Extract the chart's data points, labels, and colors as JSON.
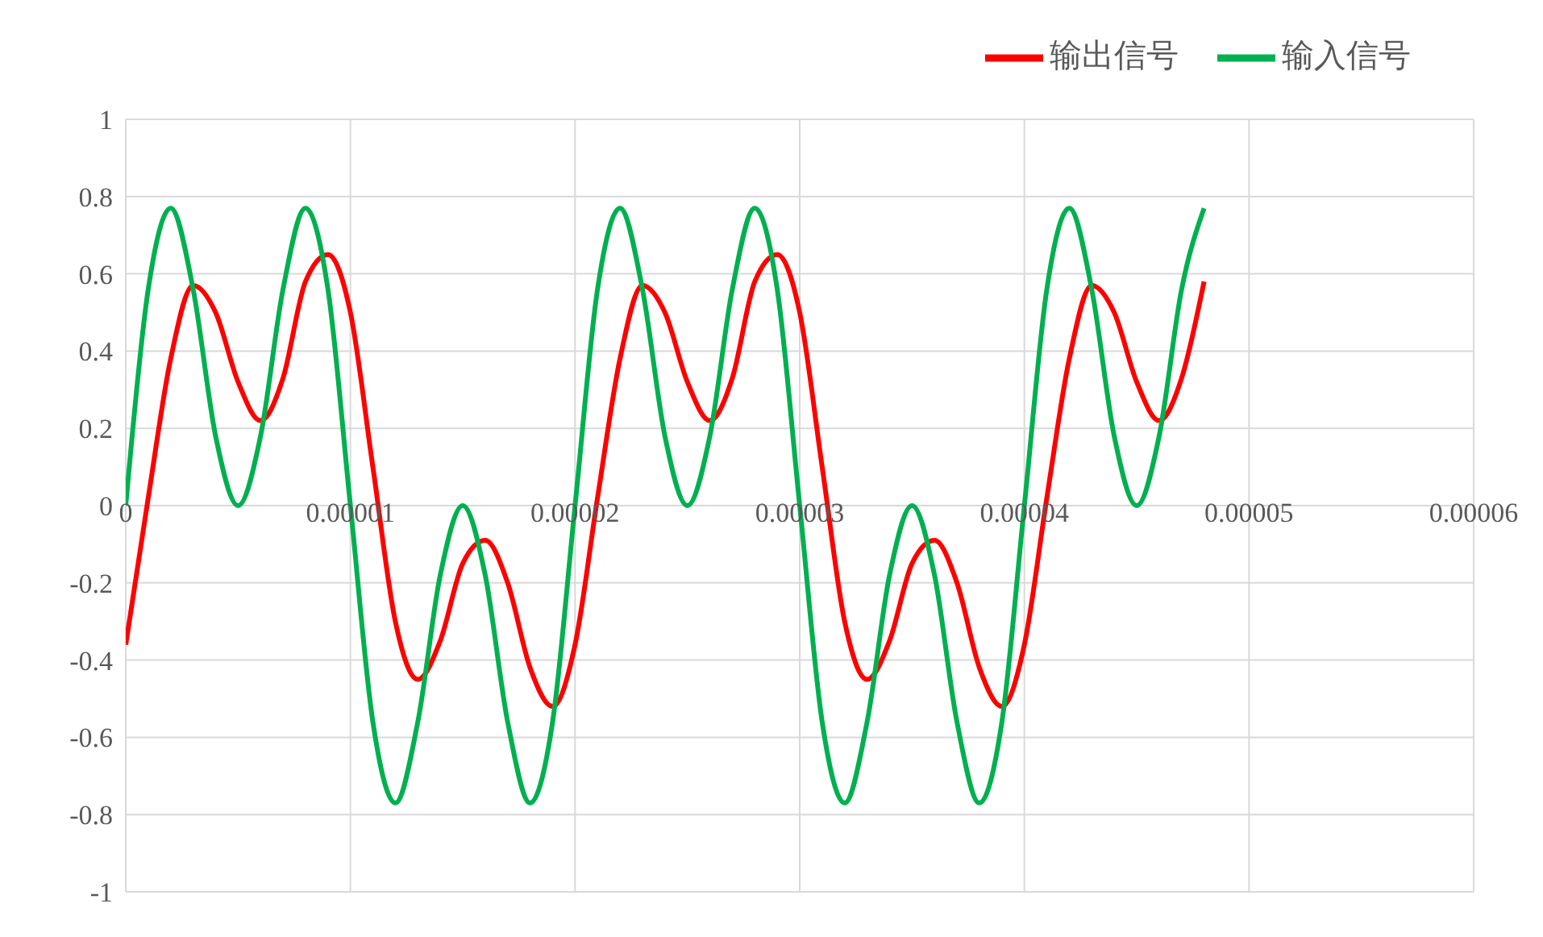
{
  "chart_data": {
    "type": "line",
    "x": [
      0,
      1e-06,
      2e-06,
      3e-06,
      4e-06,
      5e-06,
      6e-06,
      7e-06,
      8e-06,
      9e-06,
      1e-05,
      1.1e-05,
      1.2e-05,
      1.3e-05,
      1.4e-05,
      1.5e-05,
      1.6e-05,
      1.7e-05,
      1.8e-05,
      1.9e-05,
      2e-05,
      2.1e-05,
      2.2e-05,
      2.3e-05,
      2.4e-05,
      2.5e-05,
      2.6e-05,
      2.7e-05,
      2.8e-05,
      2.9e-05,
      3e-05,
      3.1e-05,
      3.2e-05,
      3.3e-05,
      3.4e-05,
      3.5e-05,
      3.6e-05,
      3.7e-05,
      3.8e-05,
      3.9e-05,
      4e-05,
      4.1e-05,
      4.2e-05,
      4.3e-05,
      4.4e-05,
      4.5e-05,
      4.6e-05,
      4.7e-05,
      4.8e-05
    ],
    "series": [
      {
        "name": "输出信号",
        "color": "#ff0000",
        "values": [
          -0.36,
          0.02,
          0.38,
          0.57,
          0.5,
          0.32,
          0.22,
          0.33,
          0.58,
          0.65,
          0.5,
          0.1,
          -0.3,
          -0.45,
          -0.35,
          -0.15,
          -0.09,
          -0.2,
          -0.42,
          -0.52,
          -0.36,
          0.02,
          0.38,
          0.57,
          0.5,
          0.32,
          0.22,
          0.33,
          0.58,
          0.65,
          0.5,
          0.1,
          -0.3,
          -0.45,
          -0.35,
          -0.15,
          -0.09,
          -0.2,
          -0.42,
          -0.52,
          -0.36,
          0.02,
          0.38,
          0.57,
          0.5,
          0.32,
          0.22,
          0.33,
          0.58
        ]
      },
      {
        "name": "输入信号",
        "color": "#00b050",
        "values": [
          0,
          0.56,
          0.77,
          0.56,
          0.18,
          0,
          0.18,
          0.56,
          0.77,
          0.56,
          0,
          -0.56,
          -0.77,
          -0.56,
          -0.18,
          0,
          -0.18,
          -0.56,
          -0.77,
          -0.56,
          0,
          0.56,
          0.77,
          0.56,
          0.18,
          0,
          0.18,
          0.56,
          0.77,
          0.56,
          0,
          -0.56,
          -0.77,
          -0.56,
          -0.18,
          0,
          -0.18,
          -0.56,
          -0.77,
          -0.56,
          0,
          0.56,
          0.77,
          0.56,
          0.18,
          0,
          0.18,
          0.56,
          0.77
        ]
      }
    ],
    "xlim": [
      0,
      6e-05
    ],
    "xticks": [
      0,
      {
        "value": 1e-05,
        "label": "0.00001"
      },
      {
        "value": 2e-05,
        "label": "0.00002"
      },
      {
        "value": 3e-05,
        "label": "0.00003"
      },
      {
        "value": 4e-05,
        "label": "0.00004"
      },
      {
        "value": 5e-05,
        "label": "0.00005"
      },
      {
        "value": 6e-05,
        "label": "0.00006"
      }
    ],
    "ylim": [
      -1,
      1
    ],
    "yticks": [
      -1,
      -0.8,
      -0.6,
      -0.4,
      -0.2,
      0,
      0.2,
      0.4,
      0.6,
      0.8,
      1
    ],
    "grid": true,
    "legend": "top right",
    "marker": "none",
    "line_style": "solid"
  }
}
